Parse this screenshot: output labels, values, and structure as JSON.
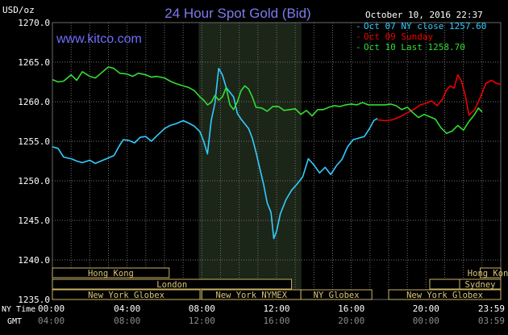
{
  "chart_data": {
    "type": "line",
    "title": "24 Hour Spot Gold (Bid)",
    "y_unit": "USD/oz",
    "timestamp": "October 10, 2016 22:37",
    "watermark": "www.kitco.com",
    "ylim": [
      1235.0,
      1270.0
    ],
    "y_ticks": [
      "1270.0",
      "1265.0",
      "1260.0",
      "1255.0",
      "1250.0",
      "1245.0",
      "1240.0",
      "1235.0"
    ],
    "x_range_hours": [
      0,
      24
    ],
    "x_tick_hours": [
      0,
      4,
      8,
      12,
      16,
      20,
      24
    ],
    "x_row_labels": [
      "NY Time",
      "GMT"
    ],
    "x_ticks_ny": [
      "00:00",
      "04:00",
      "08:00",
      "12:00",
      "16:00",
      "20:00",
      "23:59"
    ],
    "x_ticks_gmt": [
      "04:00",
      "08:00",
      "12:00",
      "16:00",
      "20:00",
      "00:00",
      "03:59"
    ],
    "grid": true,
    "highlight_band_hours": [
      7.83,
      13.33
    ],
    "legend_position": "top-right",
    "series": [
      {
        "name": "Oct 07 NY close 1257.60",
        "color": "#33ccff",
        "x": [
          0,
          0.3,
          0.6,
          1,
          1.3,
          1.6,
          2,
          2.3,
          2.6,
          3,
          3.3,
          3.6,
          3.8,
          4.1,
          4.4,
          4.7,
          5,
          5.3,
          5.6,
          6,
          6.3,
          6.6,
          7,
          7.3,
          7.6,
          7.9,
          8.1,
          8.3,
          8.5,
          8.7,
          8.9,
          9.1,
          9.3,
          9.5,
          9.7,
          9.9,
          10.1,
          10.3,
          10.5,
          10.7,
          10.9,
          11.1,
          11.3,
          11.5,
          11.7,
          11.85,
          12,
          12.2,
          12.5,
          12.8,
          13.1,
          13.4,
          13.7,
          14,
          14.3,
          14.6,
          14.9,
          15.2,
          15.5,
          15.8,
          16.1,
          16.4,
          16.7,
          17,
          17.2,
          17.4
        ],
        "values": [
          1254.3,
          1254.1,
          1253.0,
          1252.8,
          1252.5,
          1252.3,
          1252.6,
          1252.2,
          1252.5,
          1252.9,
          1253.2,
          1254.5,
          1255.2,
          1255.1,
          1254.8,
          1255.5,
          1255.6,
          1255.0,
          1255.7,
          1256.6,
          1257.0,
          1257.2,
          1257.6,
          1257.3,
          1256.9,
          1256.2,
          1255.0,
          1253.4,
          1257.6,
          1259.8,
          1264.2,
          1263.4,
          1261.8,
          1261.2,
          1260.6,
          1258.5,
          1257.8,
          1257.2,
          1256.6,
          1255.4,
          1253.6,
          1251.6,
          1249.6,
          1247.2,
          1246.0,
          1242.7,
          1243.6,
          1245.8,
          1247.6,
          1248.8,
          1249.6,
          1250.5,
          1252.8,
          1252.0,
          1251.0,
          1251.7,
          1250.8,
          1251.9,
          1252.7,
          1254.3,
          1255.2,
          1255.4,
          1255.6,
          1256.7,
          1257.6,
          1257.9
        ]
      },
      {
        "name": "Oct 09 Sunday",
        "color": "#ee0000",
        "x": [
          17.4,
          17.8,
          18.2,
          18.6,
          19,
          19.4,
          19.7,
          20,
          20.3,
          20.6,
          20.9,
          21.1,
          21.3,
          21.5,
          21.7,
          21.9,
          22.1,
          22.3,
          22.6,
          22.9,
          23.2,
          23.5,
          23.8,
          24
        ],
        "values": [
          1257.7,
          1257.6,
          1257.7,
          1258.1,
          1258.6,
          1259.1,
          1259.6,
          1259.8,
          1260.1,
          1259.5,
          1260.4,
          1261.5,
          1262.0,
          1261.7,
          1263.4,
          1262.6,
          1260.8,
          1258.3,
          1259.0,
          1260.5,
          1262.3,
          1262.7,
          1262.3,
          1262.2
        ]
      },
      {
        "name": "Oct 10 Last 1258.70",
        "color": "#33dd33",
        "x": [
          0,
          0.3,
          0.6,
          1,
          1.3,
          1.6,
          2,
          2.3,
          2.6,
          3,
          3.3,
          3.6,
          4,
          4.3,
          4.6,
          5,
          5.3,
          5.6,
          6,
          6.3,
          6.6,
          7,
          7.3,
          7.6,
          7.9,
          8.1,
          8.3,
          8.5,
          8.7,
          8.9,
          9.1,
          9.3,
          9.5,
          9.7,
          9.9,
          10.1,
          10.3,
          10.5,
          10.7,
          10.9,
          11.2,
          11.5,
          11.8,
          12.1,
          12.4,
          12.7,
          13,
          13.3,
          13.6,
          13.9,
          14.2,
          14.5,
          14.8,
          15.1,
          15.4,
          15.7,
          16,
          16.3,
          16.6,
          16.9,
          17.2,
          17.5,
          17.8,
          18.1,
          18.4,
          18.7,
          19,
          19.3,
          19.6,
          19.9,
          20.2,
          20.5,
          20.8,
          21.1,
          21.4,
          21.7,
          22,
          22.3,
          22.6,
          22.8,
          23
        ],
        "values": [
          1262.8,
          1262.5,
          1262.6,
          1263.4,
          1262.7,
          1263.8,
          1263.2,
          1263.0,
          1263.6,
          1264.4,
          1264.2,
          1263.6,
          1263.5,
          1263.2,
          1263.6,
          1263.4,
          1263.1,
          1263.2,
          1263.0,
          1262.6,
          1262.3,
          1262.0,
          1261.8,
          1261.4,
          1260.6,
          1260.2,
          1259.6,
          1259.9,
          1260.8,
          1260.2,
          1260.6,
          1261.8,
          1259.6,
          1259.0,
          1260.0,
          1261.4,
          1262.0,
          1261.6,
          1260.6,
          1259.3,
          1259.2,
          1258.8,
          1259.4,
          1259.4,
          1258.9,
          1259.0,
          1259.1,
          1258.4,
          1258.9,
          1258.2,
          1259.0,
          1259.0,
          1259.3,
          1259.5,
          1259.4,
          1259.6,
          1259.7,
          1259.6,
          1259.9,
          1259.6,
          1259.6,
          1259.6,
          1259.6,
          1259.7,
          1259.5,
          1259.0,
          1259.3,
          1258.6,
          1258.0,
          1258.4,
          1258.1,
          1257.8,
          1256.7,
          1256.0,
          1256.3,
          1257.0,
          1256.4,
          1257.5,
          1258.4,
          1259.2,
          1258.7
        ]
      }
    ],
    "market_rows": [
      [
        {
          "label": "Hong Kong",
          "start": 0,
          "end": 6.25
        },
        {
          "label": "Hong Kong",
          "start": 22.9,
          "end": 24
        }
      ],
      [
        {
          "label": "London",
          "start": 0,
          "end": 12.8
        },
        {
          "label": "",
          "start": 20.2,
          "end": 21.8
        },
        {
          "label": "Sydney",
          "start": 21.8,
          "end": 24
        }
      ],
      [
        {
          "label": "New York Globex",
          "start": 0,
          "end": 7.9
        },
        {
          "label": "New York NYMEX",
          "start": 8.0,
          "end": 13.3
        },
        {
          "label": "NY Globex",
          "start": 13.3,
          "end": 17.1
        },
        {
          "label": "New York Globex",
          "start": 18.0,
          "end": 24
        }
      ]
    ]
  }
}
